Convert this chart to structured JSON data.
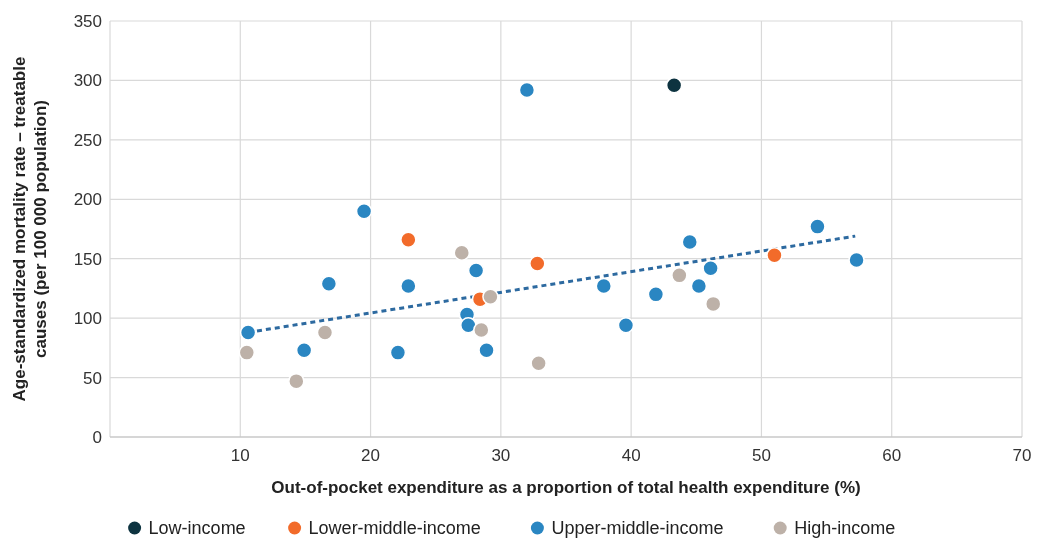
{
  "chart_data": {
    "type": "scatter",
    "xlabel": "Out-of-pocket expenditure as a proportion of total health expenditure (%)",
    "ylabel": "Age-standardized mortality rate – treatable causes (per 100 000 population)",
    "xlim": [
      0,
      70
    ],
    "xticks": [
      10,
      20,
      30,
      40,
      50,
      60,
      70
    ],
    "ylim": [
      0,
      350
    ],
    "yticks": [
      0,
      50,
      100,
      150,
      200,
      250,
      300,
      350
    ],
    "grid": true,
    "legend": "bottom",
    "marker": "circle",
    "series": [
      {
        "type": "line",
        "line_style": "dashed",
        "marker": "none",
        "color": "#2d6aa0",
        "x": [
          10.6,
          57.2
        ],
        "values": [
          88,
          169
        ]
      },
      {
        "name": "Low-income",
        "color": "#0d3340",
        "x": [
          43.3
        ],
        "values": [
          296
        ]
      },
      {
        "name": "Lower-middle-income",
        "color": "#f26b2a",
        "x": [
          22.9,
          32.8,
          28.4,
          51.0
        ],
        "values": [
          166,
          146,
          116,
          153
        ]
      },
      {
        "name": "Upper-middle-income",
        "color": "#2a86c2",
        "x": [
          10.6,
          14.9,
          16.8,
          19.5,
          22.1,
          22.9,
          28.1,
          27.4,
          27.5,
          28.9,
          32.0,
          37.9,
          39.6,
          41.9,
          44.5,
          45.2,
          46.1,
          54.3,
          57.3
        ],
        "values": [
          88,
          73,
          129,
          190,
          71,
          127,
          140,
          103,
          94,
          73,
          292,
          127,
          94,
          120,
          164,
          127,
          142,
          177,
          149
        ]
      },
      {
        "name": "High-income",
        "color": "#bdb1a8",
        "x": [
          10.5,
          14.3,
          16.5,
          27.0,
          28.5,
          29.2,
          32.9,
          43.7,
          46.3
        ],
        "values": [
          71,
          47,
          88,
          155,
          90,
          118,
          62,
          136,
          112
        ]
      }
    ]
  }
}
